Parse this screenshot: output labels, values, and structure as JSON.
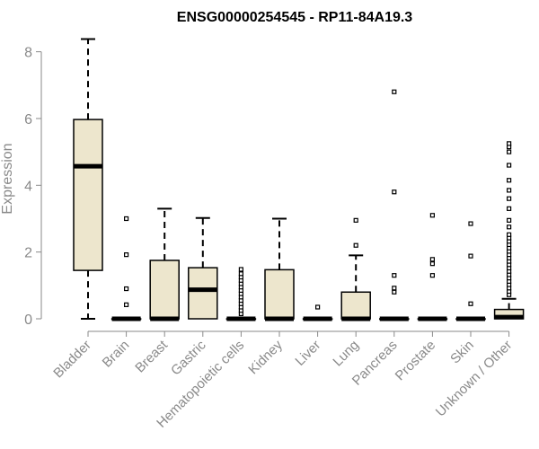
{
  "chart_data": {
    "type": "box",
    "title": "ENSG00000254545 - RP11-84A19.3",
    "xlabel": "",
    "ylabel": "Expression",
    "ylim": [
      0,
      8.5
    ],
    "yticks": [
      0,
      2,
      4,
      6,
      8
    ],
    "grid": false,
    "box_fill": "#ede6cd",
    "categories": [
      "Bladder",
      "Brain",
      "Breast",
      "Gastric",
      "Hematopoietic cells",
      "Kidney",
      "Liver",
      "Lung",
      "Pancreas",
      "Prostate",
      "Skin",
      "Unknown / Other"
    ],
    "boxes": [
      {
        "name": "Bladder",
        "min": 0,
        "q1": 1.45,
        "median": 4.57,
        "q3": 5.97,
        "max": 8.38,
        "outliers": []
      },
      {
        "name": "Brain",
        "min": 0,
        "q1": 0,
        "median": 0,
        "q3": 0,
        "max": 0,
        "outliers": [
          0.42,
          0.9,
          1.92,
          3.0
        ]
      },
      {
        "name": "Breast",
        "min": 0,
        "q1": 0,
        "median": 0,
        "q3": 1.75,
        "max": 3.3,
        "outliers": []
      },
      {
        "name": "Gastric",
        "min": 0,
        "q1": 0,
        "median": 0.87,
        "q3": 1.53,
        "max": 3.02,
        "outliers": []
      },
      {
        "name": "Hematopoietic cells",
        "min": 0,
        "q1": 0,
        "median": 0,
        "q3": 0,
        "max": 0,
        "outliers": [
          0.15,
          0.25,
          0.35,
          0.45,
          0.55,
          0.65,
          0.75,
          0.85,
          0.95,
          1.05,
          1.15,
          1.25,
          1.35,
          1.48
        ]
      },
      {
        "name": "Kidney",
        "min": 0,
        "q1": 0,
        "median": 0,
        "q3": 1.47,
        "max": 3.0,
        "outliers": []
      },
      {
        "name": "Liver",
        "min": 0,
        "q1": 0,
        "median": 0,
        "q3": 0,
        "max": 0,
        "outliers": [
          0.35
        ]
      },
      {
        "name": "Lung",
        "min": 0,
        "q1": 0,
        "median": 0,
        "q3": 0.8,
        "max": 1.9,
        "outliers": [
          2.2,
          2.95
        ]
      },
      {
        "name": "Pancreas",
        "min": 0,
        "q1": 0,
        "median": 0,
        "q3": 0,
        "max": 0,
        "outliers": [
          0.8,
          0.92,
          1.3,
          3.8,
          6.8
        ]
      },
      {
        "name": "Prostate",
        "min": 0,
        "q1": 0,
        "median": 0,
        "q3": 0,
        "max": 0,
        "outliers": [
          1.3,
          1.65,
          1.78,
          3.1
        ]
      },
      {
        "name": "Skin",
        "min": 0,
        "q1": 0,
        "median": 0,
        "q3": 0,
        "max": 0,
        "outliers": [
          0.45,
          1.88,
          2.85
        ]
      },
      {
        "name": "Unknown / Other",
        "min": 0,
        "q1": 0,
        "median": 0.05,
        "q3": 0.28,
        "max": 0.6,
        "outliers": [
          0.72,
          0.82,
          0.92,
          1.02,
          1.12,
          1.22,
          1.32,
          1.42,
          1.52,
          1.62,
          1.72,
          1.82,
          1.92,
          2.02,
          2.12,
          2.22,
          2.32,
          2.42,
          2.52,
          2.75,
          2.95,
          3.3,
          3.6,
          3.85,
          4.15,
          4.6,
          5.0,
          5.15,
          5.25
        ]
      }
    ]
  }
}
